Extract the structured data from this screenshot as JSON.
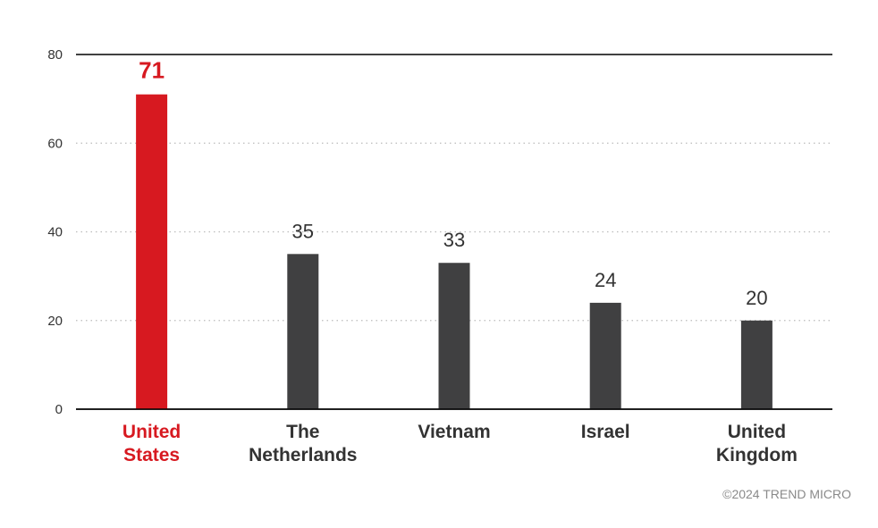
{
  "chart_data": {
    "type": "bar",
    "categories": [
      "United\nStates",
      "The\nNetherlands",
      "Vietnam",
      "Israel",
      "United\nKingdom"
    ],
    "values": [
      71,
      35,
      33,
      24,
      20
    ],
    "highlight_index": 0,
    "ylim": [
      0,
      80
    ],
    "yticks": [
      0,
      20,
      40,
      60,
      80
    ],
    "grid": true,
    "colors": {
      "highlight": "#d71920",
      "bar": "#404041",
      "axis": "#000000",
      "grid": "#bbbbbb",
      "text": "#333333"
    }
  },
  "footer": {
    "copyright": "©2024 TREND MICRO"
  }
}
